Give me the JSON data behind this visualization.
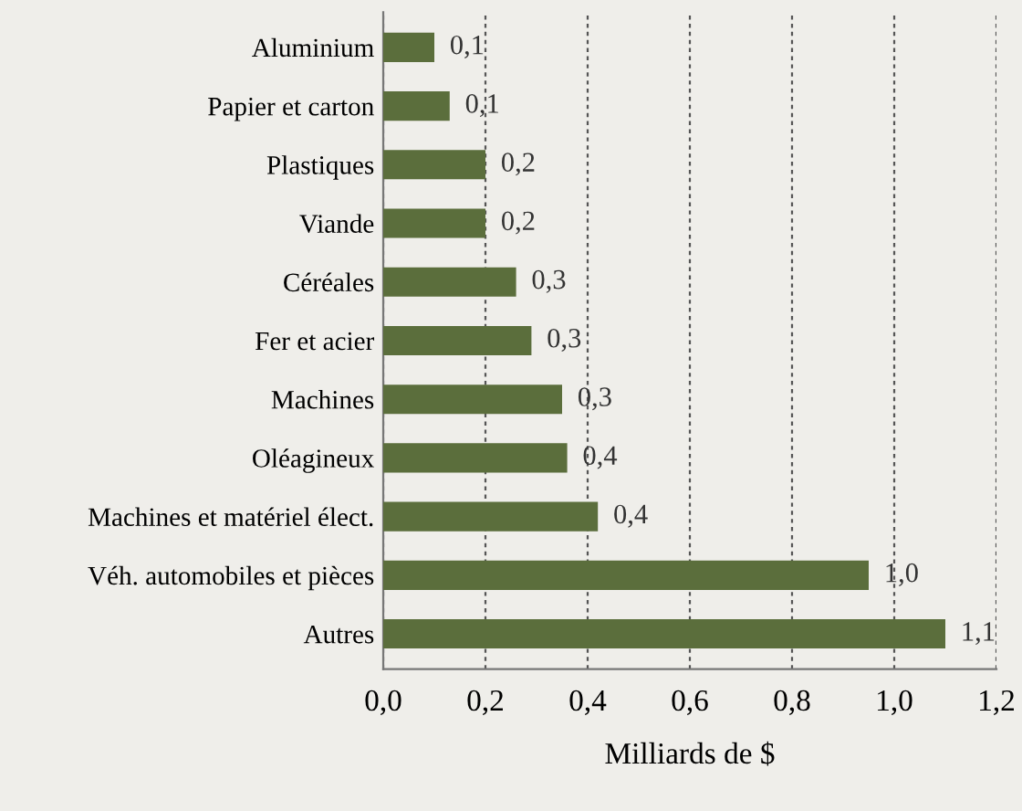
{
  "chart_data": {
    "type": "bar",
    "orientation": "horizontal",
    "xlabel": "Milliards de $",
    "categories": [
      "Aluminium",
      "Papier et carton",
      "Plastiques",
      "Viande",
      "Céréales",
      "Fer et acier",
      "Machines",
      "Oléagineux",
      "Machines et matériel élect.",
      "Véh. automobiles et pièces",
      "Autres"
    ],
    "values": [
      0.1,
      0.13,
      0.2,
      0.2,
      0.26,
      0.29,
      0.35,
      0.36,
      0.42,
      0.95,
      1.1
    ],
    "value_labels": [
      "0,1",
      "0,1",
      "0,2",
      "0,2",
      "0,3",
      "0,3",
      "0,3",
      "0,4",
      "0,4",
      "1,0",
      "1,1"
    ],
    "color": "#5b6e3c",
    "xlim": [
      0,
      1.2
    ],
    "xticks": [
      {
        "value": 0,
        "label": "0,0"
      },
      {
        "value": 0.2,
        "label": "0,2"
      },
      {
        "value": 0.4,
        "label": "0,4"
      },
      {
        "value": 0.6,
        "label": "0,6"
      },
      {
        "value": 0.8,
        "label": "0,8"
      },
      {
        "value": 1.0,
        "label": "1,0"
      },
      {
        "value": 1.2,
        "label": "1,2"
      }
    ],
    "grid": "x"
  }
}
